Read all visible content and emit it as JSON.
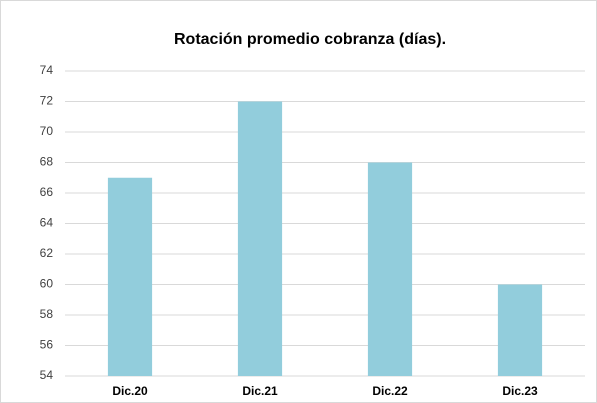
{
  "chart_data": {
    "type": "bar",
    "title": "Rotación promedio cobranza (días).",
    "categories": [
      "Dic.20",
      "Dic.21",
      "Dic.22",
      "Dic.23"
    ],
    "values": [
      67,
      72,
      68,
      60
    ],
    "color": "#92cddc",
    "ylim": [
      54,
      74
    ],
    "yticks": [
      54,
      56,
      58,
      60,
      62,
      64,
      66,
      68,
      70,
      72,
      74
    ],
    "grid": true
  }
}
